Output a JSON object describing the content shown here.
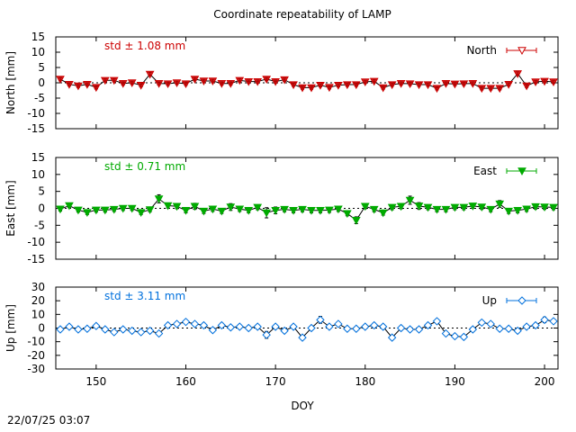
{
  "figure": {
    "title": "Coordinate repeatability of LAMP",
    "xlabel": "DOY",
    "timestamp": "22/07/25 03:07"
  },
  "chart_data": [
    {
      "type": "line",
      "name": "north",
      "ylabel": "North [mm]",
      "legend": "North",
      "legend_marker": "triangle-down-open",
      "std_label": "std ± 1.08 mm",
      "color": "#cc0000",
      "xlim": [
        145.5,
        201.5
      ],
      "ylim": [
        -15,
        15
      ],
      "yticks": [
        -15,
        -10,
        -5,
        0,
        5,
        10,
        15
      ],
      "x": [
        146,
        147,
        148,
        149,
        150,
        151,
        152,
        153,
        154,
        155,
        156,
        157,
        158,
        159,
        160,
        161,
        162,
        163,
        164,
        165,
        166,
        167,
        168,
        169,
        170,
        171,
        172,
        173,
        174,
        175,
        176,
        177,
        178,
        179,
        180,
        181,
        182,
        183,
        184,
        185,
        186,
        187,
        188,
        189,
        190,
        191,
        192,
        193,
        194,
        195,
        196,
        197,
        198,
        199,
        200,
        201
      ],
      "values": [
        1.2,
        -0.5,
        -1.0,
        -0.5,
        -1.5,
        0.8,
        0.8,
        -0.2,
        0,
        -0.8,
        2.8,
        -0.2,
        -0.3,
        0,
        -0.3,
        1.2,
        0.6,
        0.6,
        -0.2,
        -0.2,
        0.8,
        0.4,
        0.4,
        1.2,
        0.4,
        1.0,
        -0.6,
        -1.6,
        -1.6,
        -0.8,
        -1.5,
        -0.8,
        -0.6,
        -0.6,
        0.3,
        0.5,
        -1.6,
        -0.6,
        -0.2,
        -0.3,
        -0.6,
        -0.6,
        -1.8,
        -0.2,
        -0.4,
        -0.3,
        -0.2,
        -1.8,
        -1.8,
        -1.8,
        -0.5,
        3.0,
        -1.0,
        0.3,
        0.5,
        0.3
      ],
      "errors": [
        0.5,
        0.5,
        0.5,
        0.5,
        0.5,
        0.5,
        0.5,
        0.5,
        0.5,
        0.5,
        0.6,
        0.5,
        0.5,
        0.5,
        0.5,
        0.5,
        0.5,
        0.5,
        0.5,
        0.5,
        0.5,
        0.5,
        0.5,
        0.5,
        0.5,
        0.5,
        0.5,
        0.5,
        0.5,
        0.5,
        0.5,
        0.5,
        0.5,
        0.5,
        0.5,
        0.5,
        0.5,
        0.5,
        0.5,
        0.5,
        0.5,
        0.5,
        0.5,
        0.5,
        0.5,
        0.5,
        0.5,
        0.5,
        0.5,
        0.5,
        0.5,
        0.6,
        0.5,
        0.5,
        0.5,
        0.5
      ]
    },
    {
      "type": "line",
      "name": "east",
      "ylabel": "East [mm]",
      "legend": "East",
      "legend_marker": "triangle-down-filled",
      "std_label": "std ± 0.71 mm",
      "color": "#00aa00",
      "xlim": [
        145.5,
        201.5
      ],
      "ylim": [
        -15,
        15
      ],
      "yticks": [
        -15,
        -10,
        -5,
        0,
        5,
        10,
        15
      ],
      "x": [
        146,
        147,
        148,
        149,
        150,
        151,
        152,
        153,
        154,
        155,
        156,
        157,
        158,
        159,
        160,
        161,
        162,
        163,
        164,
        165,
        166,
        167,
        168,
        169,
        170,
        171,
        172,
        173,
        174,
        175,
        176,
        177,
        178,
        179,
        180,
        181,
        182,
        183,
        184,
        185,
        186,
        187,
        188,
        189,
        190,
        191,
        192,
        193,
        194,
        195,
        196,
        197,
        198,
        199,
        200,
        201
      ],
      "values": [
        -0.2,
        0.8,
        -0.5,
        -1.2,
        -0.5,
        -0.5,
        -0.3,
        0,
        0,
        -1.2,
        -0.4,
        2.8,
        0.8,
        0.6,
        -0.6,
        0.6,
        -0.8,
        -0.2,
        -0.8,
        0.4,
        -0.2,
        -0.6,
        0.3,
        -1.3,
        -0.6,
        -0.3,
        -0.6,
        -0.3,
        -0.6,
        -0.6,
        -0.5,
        -0.2,
        -1.5,
        -3.5,
        0.6,
        -0.3,
        -1.3,
        0.3,
        0.6,
        2.4,
        0.7,
        0.3,
        -0.3,
        -0.3,
        0.3,
        0.3,
        0.7,
        0.4,
        -0.3,
        1.3,
        -0.8,
        -0.6,
        -0.2,
        0.5,
        0.4,
        0.3
      ],
      "errors": [
        0.6,
        0.6,
        0.6,
        0.6,
        0.6,
        0.6,
        0.6,
        0.6,
        0.6,
        0.6,
        0.6,
        1.2,
        0.7,
        0.7,
        0.7,
        0.9,
        0.7,
        0.7,
        0.7,
        1.0,
        0.7,
        0.7,
        0.7,
        1.5,
        1.0,
        0.7,
        0.7,
        0.7,
        0.7,
        0.7,
        0.7,
        0.7,
        0.7,
        1.0,
        0.7,
        0.7,
        0.7,
        0.7,
        0.7,
        1.2,
        1.0,
        0.7,
        0.7,
        0.7,
        0.7,
        0.7,
        0.7,
        0.7,
        0.7,
        1.0,
        0.7,
        0.7,
        0.7,
        0.7,
        0.7,
        0.7
      ]
    },
    {
      "type": "line",
      "name": "up",
      "ylabel": "Up [mm]",
      "legend": "Up",
      "legend_marker": "diamond-open",
      "std_label": "std ± 3.11 mm",
      "color": "#0070dd",
      "xlim": [
        145.5,
        201.5
      ],
      "ylim": [
        -30,
        30
      ],
      "yticks": [
        -30,
        -20,
        -10,
        0,
        10,
        20,
        30
      ],
      "x": [
        146,
        147,
        148,
        149,
        150,
        151,
        152,
        153,
        154,
        155,
        156,
        157,
        158,
        159,
        160,
        161,
        162,
        163,
        164,
        165,
        166,
        167,
        168,
        169,
        170,
        171,
        172,
        173,
        174,
        175,
        176,
        177,
        178,
        179,
        180,
        181,
        182,
        183,
        184,
        185,
        186,
        187,
        188,
        189,
        190,
        191,
        192,
        193,
        194,
        195,
        196,
        197,
        198,
        199,
        200,
        201
      ],
      "values": [
        -1,
        1,
        -1,
        -0.5,
        1.5,
        -1,
        -3,
        -1,
        -2,
        -3,
        -2,
        -4,
        2,
        3,
        4.5,
        3,
        2,
        -1.5,
        2,
        0.5,
        1,
        0,
        1,
        -5,
        1,
        -2,
        1,
        -7,
        0,
        6,
        1,
        3,
        -0.5,
        -0.5,
        1,
        2,
        1,
        -7,
        0,
        -1,
        -1,
        2,
        5,
        -4,
        -6,
        -6.5,
        -1,
        4,
        3,
        -0.5,
        -0.5,
        -2,
        1,
        2,
        6,
        5
      ],
      "errors": [
        1.5,
        1.5,
        1.5,
        1.5,
        1.5,
        1.5,
        1.5,
        1.5,
        1.5,
        1.5,
        1.5,
        1.5,
        1.5,
        1.5,
        1.5,
        1.5,
        1.5,
        1.5,
        1.5,
        1.5,
        1.5,
        1.5,
        1.5,
        2.5,
        1.5,
        1.5,
        1.5,
        1.5,
        1.5,
        2.5,
        1.5,
        1.5,
        1.5,
        1.5,
        1.5,
        1.5,
        1.5,
        1.5,
        1.5,
        1.5,
        1.5,
        1.5,
        1.5,
        1.5,
        1.5,
        1.5,
        1.5,
        1.5,
        1.5,
        1.5,
        1.5,
        1.5,
        1.5,
        1.5,
        2,
        1.5
      ]
    }
  ],
  "shared_axis": {
    "xticks": [
      150,
      160,
      170,
      180,
      190,
      200
    ]
  }
}
